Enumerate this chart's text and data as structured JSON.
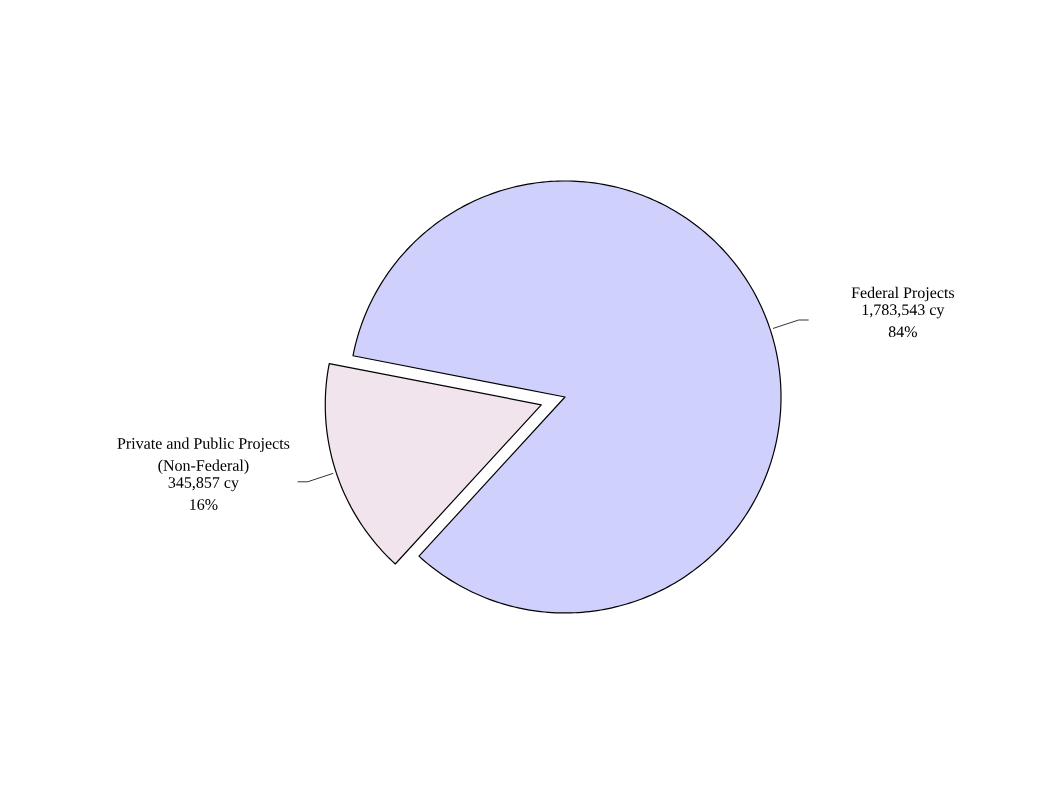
{
  "chart_data": {
    "type": "pie",
    "categories": [
      "Federal Projects",
      "Private and Public Projects (Non-Federal)"
    ],
    "values": [
      1783543,
      345857
    ],
    "value_labels": [
      "1,783,543 cy 84%",
      "345,857 cy 16%"
    ],
    "colors": [
      "#d0d0fc",
      "#f2e4ec"
    ]
  }
}
